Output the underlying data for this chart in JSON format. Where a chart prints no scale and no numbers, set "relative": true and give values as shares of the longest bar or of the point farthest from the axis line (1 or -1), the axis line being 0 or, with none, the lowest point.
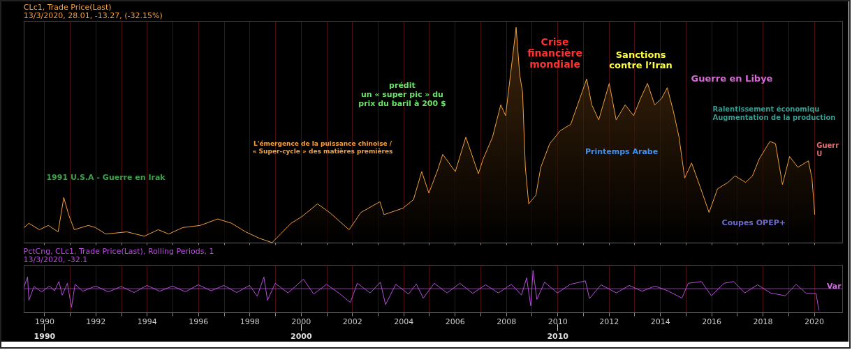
{
  "chart_data": [
    {
      "type": "area",
      "title": "CLc1, Trade Price(Last)",
      "subtitle": "13/3/2020, 28.01, -13.27, (-32.15%)",
      "relative": true,
      "color": "#f0a040",
      "grid": "x",
      "tick_labels": false,
      "xlim": [
        1989.2,
        2021.1
      ],
      "xticks": [
        1990,
        {
          "value": 1991,
          "label": null
        },
        1992,
        {
          "value": 1993,
          "label": null
        },
        1994,
        {
          "value": 1995,
          "label": null
        },
        1996,
        {
          "value": 1997,
          "label": null
        },
        1998,
        {
          "value": 1999,
          "label": null
        },
        2000,
        {
          "value": 2001,
          "label": null
        },
        2002,
        {
          "value": 2003,
          "label": null
        },
        2004,
        {
          "value": 2005,
          "label": null
        },
        2006,
        {
          "value": 2007,
          "label": null
        },
        2008,
        {
          "value": 2009,
          "label": null
        },
        2010,
        {
          "value": 2011,
          "label": null
        },
        2012,
        {
          "value": 2013,
          "label": null
        },
        2014,
        {
          "value": 2015,
          "label": null
        },
        2016,
        {
          "value": 2017,
          "label": null
        },
        2018,
        {
          "value": 2019,
          "label": null
        },
        2020
      ],
      "x": [
        1989.21,
        1989.4,
        1989.81,
        1990.16,
        1990.54,
        1990.76,
        1990.95,
        1991.17,
        1991.72,
        1991.99,
        1992.4,
        1993.22,
        1993.9,
        1994.44,
        1994.85,
        1995.4,
        1996.08,
        1996.76,
        1997.3,
        1997.85,
        1998.39,
        1998.88,
        1999.21,
        1999.62,
        2000.03,
        2000.65,
        2001.12,
        2001.88,
        2002.34,
        2003.08,
        2003.24,
        2003.98,
        2004.39,
        2004.71,
        2004.99,
        2005.34,
        2005.53,
        2006.02,
        2006.43,
        2006.92,
        2007.11,
        2007.47,
        2007.79,
        2007.98,
        2008.39,
        2008.53,
        2008.64,
        2008.75,
        2008.88,
        2009.16,
        2009.35,
        2009.7,
        2010.11,
        2010.52,
        2011.14,
        2011.34,
        2011.61,
        2012.02,
        2012.29,
        2012.64,
        2012.97,
        2013.24,
        2013.51,
        2013.79,
        2014.06,
        2014.28,
        2014.52,
        2014.74,
        2014.96,
        2015.23,
        2015.56,
        2015.91,
        2016.24,
        2016.65,
        2016.92,
        2017.33,
        2017.6,
        2017.87,
        2018.28,
        2018.5,
        2018.77,
        2019.05,
        2019.37,
        2019.78,
        2019.92,
        2020.03
      ],
      "values": [
        0.07,
        0.09,
        0.06,
        0.08,
        0.05,
        0.21,
        0.13,
        0.06,
        0.08,
        0.07,
        0.04,
        0.05,
        0.03,
        0.06,
        0.04,
        0.07,
        0.08,
        0.11,
        0.09,
        0.05,
        0.02,
        0,
        0.04,
        0.09,
        0.12,
        0.18,
        0.14,
        0.06,
        0.14,
        0.19,
        0.13,
        0.16,
        0.2,
        0.33,
        0.23,
        0.34,
        0.41,
        0.33,
        0.49,
        0.32,
        0.39,
        0.49,
        0.64,
        0.59,
        1,
        0.78,
        0.7,
        0.35,
        0.18,
        0.22,
        0.35,
        0.46,
        0.52,
        0.55,
        0.76,
        0.64,
        0.57,
        0.74,
        0.57,
        0.64,
        0.59,
        0.67,
        0.74,
        0.64,
        0.67,
        0.72,
        0.61,
        0.49,
        0.3,
        0.37,
        0.26,
        0.14,
        0.25,
        0.28,
        0.31,
        0.28,
        0.31,
        0.39,
        0.47,
        0.46,
        0.27,
        0.4,
        0.35,
        0.38,
        0.3,
        0.13
      ],
      "annotations": [
        "1991 U.S.A - Guerre en Irak",
        "L'émergence de la puissance chinoise /\n« Super-cycle » des matières premières",
        "prédit\nun « super pic » du\nprix du baril à 200 $",
        "Crise\nfinancière\nmondiale",
        "Sanctions\ncontre l’Iran",
        "Guerre en Libye",
        "Printemps Arabe",
        "Ralentissement économiqu\nAugmentation de la production",
        "Guerr\nU",
        "Coupes OPEP+"
      ]
    },
    {
      "type": "line",
      "title": "PctCng, CLc1, Trade Price(Last), Rolling Periods, 1",
      "subtitle": "13/3/2020, -32.1",
      "relative": true,
      "color": "#b84fdc",
      "grid": "x",
      "xlim": [
        1989.2,
        2021.1
      ],
      "xticks": [
        1990,
        {
          "value": 1991,
          "label": null
        },
        1992,
        {
          "value": 1993,
          "label": null
        },
        1994,
        {
          "value": 1995,
          "label": null
        },
        1996,
        {
          "value": 1997,
          "label": null
        },
        1998,
        {
          "value": 1999,
          "label": null
        },
        2000,
        {
          "value": 2001,
          "label": null
        },
        2002,
        {
          "value": 2003,
          "label": null
        },
        2004,
        {
          "value": 2005,
          "label": null
        },
        2006,
        {
          "value": 2007,
          "label": null
        },
        2008,
        {
          "value": 2009,
          "label": null
        },
        2010,
        {
          "value": 2011,
          "label": null
        },
        2012,
        {
          "value": 2013,
          "label": null
        },
        2014,
        {
          "value": 2015,
          "label": null
        },
        2016,
        {
          "value": 2017,
          "label": null
        },
        2018,
        {
          "value": 2019,
          "label": null
        },
        2020
      ],
      "x2lim": [
        1989.2,
        2021.1
      ],
      "x2ticks": [
        1990,
        2000,
        2010
      ],
      "x": [
        1989.2,
        1989.35,
        1989.4,
        1989.6,
        1989.9,
        1990.2,
        1990.4,
        1990.57,
        1990.7,
        1990.9,
        1991.06,
        1991.2,
        1991.5,
        1992,
        1992.5,
        1993,
        1993.5,
        1994,
        1994.5,
        1995,
        1995.5,
        1996,
        1996.5,
        1997,
        1997.5,
        1998,
        1998.3,
        1998.56,
        1998.7,
        1999,
        1999.5,
        2000.1,
        2000.5,
        2001,
        2001.5,
        2001.93,
        2002.2,
        2002.7,
        2003.1,
        2003.3,
        2003.7,
        2004.2,
        2004.5,
        2004.77,
        2005.2,
        2005.7,
        2006.2,
        2006.7,
        2007.2,
        2007.7,
        2008.2,
        2008.6,
        2008.8,
        2008.96,
        2009.05,
        2009.2,
        2009.5,
        2010,
        2010.5,
        2011.09,
        2011.25,
        2011.7,
        2012.3,
        2012.8,
        2013.3,
        2013.8,
        2014.3,
        2014.85,
        2015.1,
        2015.61,
        2016,
        2016.5,
        2016.87,
        2017.3,
        2017.8,
        2018.3,
        2018.88,
        2019.3,
        2019.7,
        2020.08,
        2020.19
      ],
      "values": [
        0.05,
        0.54,
        -0.54,
        0.1,
        -0.15,
        0.12,
        -0.1,
        0.33,
        -0.3,
        0.25,
        -0.87,
        0.2,
        -0.12,
        0.12,
        -0.15,
        0.1,
        -0.18,
        0.15,
        -0.12,
        0.12,
        -0.15,
        0.18,
        -0.1,
        0.15,
        -0.18,
        0.15,
        -0.35,
        0.54,
        -0.54,
        0.25,
        -0.2,
        0.44,
        -0.25,
        0.2,
        -0.22,
        -0.64,
        0.25,
        -0.2,
        0.3,
        -0.74,
        0.2,
        -0.25,
        0.22,
        -0.44,
        0.25,
        -0.2,
        0.25,
        -0.22,
        0.18,
        -0.2,
        0.2,
        -0.3,
        0.5,
        -0.8,
        0.85,
        -0.5,
        0.3,
        -0.2,
        0.2,
        0.36,
        -0.46,
        0.18,
        -0.2,
        0.15,
        -0.12,
        0.12,
        -0.1,
        -0.44,
        0.25,
        0.33,
        -0.33,
        0.25,
        0.33,
        -0.2,
        0.18,
        -0.2,
        -0.33,
        0.2,
        -0.22,
        -0.23,
        -1
      ],
      "ref_lines": [
        {
          "axis": "y",
          "value": 0
        }
      ],
      "annotations": [
        "Var"
      ]
    }
  ]
}
